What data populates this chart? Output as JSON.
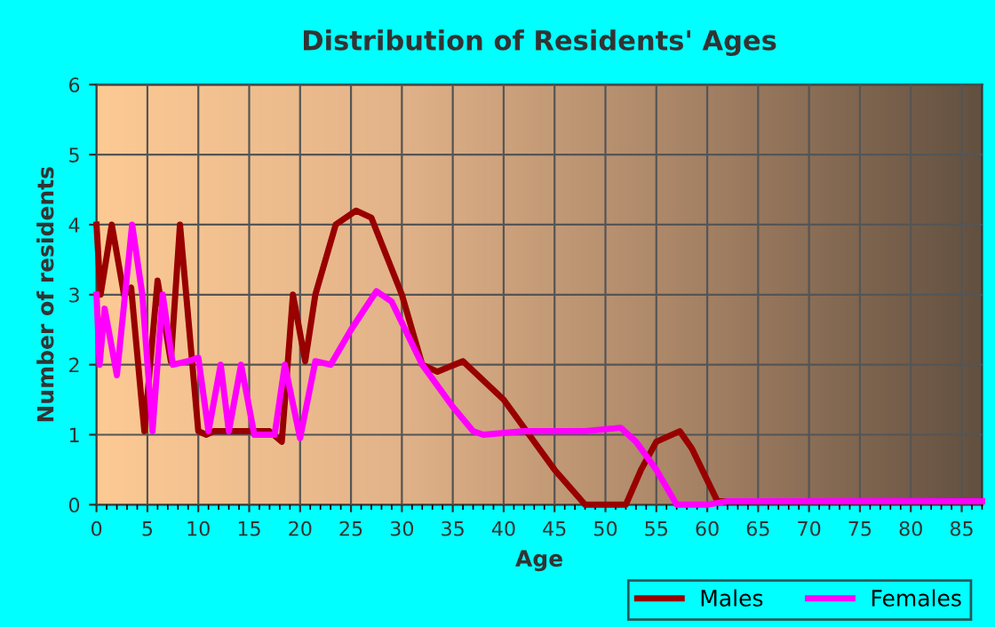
{
  "chart_data": {
    "type": "line",
    "title": "Distribution of Residents' Ages",
    "xlabel": "Age",
    "ylabel": "Number of residents",
    "xlim": [
      0,
      87
    ],
    "xticks": [
      0,
      5,
      10,
      15,
      20,
      25,
      30,
      35,
      40,
      45,
      50,
      55,
      60,
      65,
      70,
      75,
      80,
      85
    ],
    "ylim": [
      0,
      6
    ],
    "yticks": [
      0,
      1,
      2,
      3,
      4,
      5,
      6
    ],
    "grid": true,
    "legend": "bottom",
    "marker": "none",
    "line_style": "solid",
    "series": [
      {
        "name": "Males",
        "color": "#990000",
        "x": [
          0,
          0.4,
          1.5,
          2.7,
          3.4,
          4.7,
          6,
          7.3,
          8.2,
          10,
          10.8,
          11.5,
          17,
          18.2,
          19.3,
          20.5,
          21.5,
          23.5,
          25.5,
          27,
          30,
          32,
          33.5,
          36,
          40,
          45,
          48,
          52,
          53.5,
          55,
          57.3,
          58.5,
          61,
          63,
          87
        ],
        "values": [
          4,
          3,
          4,
          3,
          3.1,
          1.05,
          3.2,
          2.05,
          4,
          1.05,
          1,
          1.05,
          1.05,
          0.9,
          3,
          2.05,
          3,
          4,
          4.2,
          4.1,
          3,
          2,
          1.9,
          2.05,
          1.5,
          0.5,
          0,
          0,
          0.5,
          0.9,
          1.05,
          0.8,
          0.05,
          0.05,
          0.05
        ]
      },
      {
        "name": "Females",
        "color": "#ff00ff",
        "x": [
          0,
          0.3,
          0.8,
          2,
          3.5,
          4.5,
          5.5,
          6.5,
          7.5,
          9,
          10,
          11,
          12.2,
          13,
          14.2,
          15.5,
          17.5,
          18.5,
          20,
          21.5,
          23,
          25,
          27.5,
          29,
          32,
          35,
          37,
          38,
          42,
          48,
          51.5,
          53,
          55,
          57,
          60,
          62,
          87
        ],
        "values": [
          3,
          2,
          2.8,
          1.85,
          4,
          3,
          1.05,
          3,
          2,
          2.05,
          2.1,
          1.05,
          2,
          1.05,
          2,
          1,
          1,
          2,
          0.95,
          2.05,
          2,
          2.5,
          3.05,
          2.9,
          2,
          1.4,
          1.05,
          1,
          1.05,
          1.05,
          1.1,
          0.9,
          0.5,
          0,
          0,
          0.05,
          0.05
        ]
      }
    ]
  }
}
